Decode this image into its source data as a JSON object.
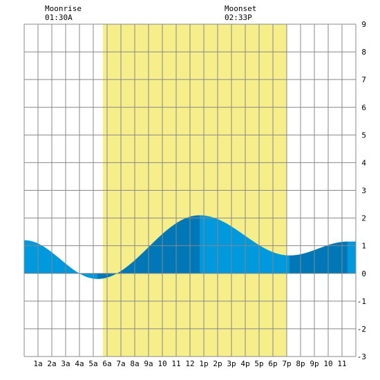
{
  "header": {
    "moonrise_label": "Moonrise",
    "moonrise_time": "01:30A",
    "moonset_label": "Moonset",
    "moonset_time": "02:33P"
  },
  "chart_data": {
    "type": "area",
    "x_tick_labels": [
      "1a",
      "2a",
      "3a",
      "4a",
      "5a",
      "6a",
      "7a",
      "8a",
      "9a",
      "10",
      "11",
      "12",
      "1p",
      "2p",
      "3p",
      "4p",
      "5p",
      "6p",
      "7p",
      "8p",
      "9p",
      "10",
      "11"
    ],
    "y_tick_labels": [
      "9",
      "8",
      "7",
      "6",
      "5",
      "4",
      "3",
      "2",
      "1",
      "0",
      "-1",
      "-2",
      "-3"
    ],
    "xlim": [
      0,
      24
    ],
    "ylim": [
      -3,
      9
    ],
    "grid": true,
    "daylight": {
      "start_hour": 5.7,
      "end_hour": 19.0
    },
    "moonrise_hour": 1.5,
    "moonset_hour": 14.55,
    "tide_extremes": [
      {
        "hour": 0.0,
        "value": 1.2
      },
      {
        "hour": 5.3,
        "value": -0.2
      },
      {
        "hour": 12.7,
        "value": 2.1
      },
      {
        "hour": 19.2,
        "value": 0.65
      },
      {
        "hour": 23.4,
        "value": 1.15
      }
    ],
    "colors": {
      "daylight": "#f5ee8a",
      "water_light": "#0099dd",
      "water_dark": "#0077b6",
      "grid": "#888888"
    }
  }
}
